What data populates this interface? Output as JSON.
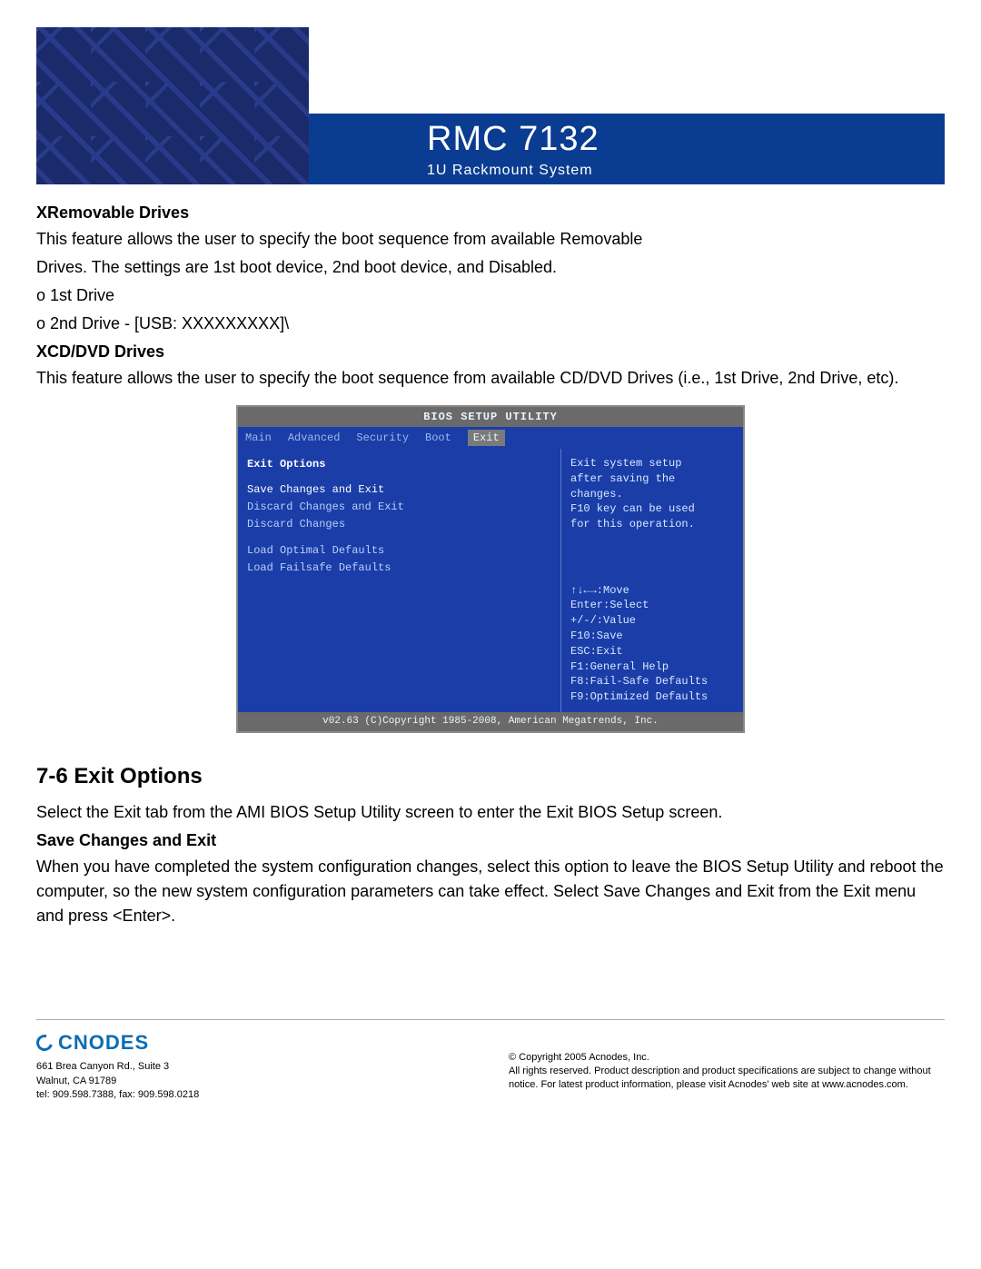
{
  "header": {
    "title": "RMC 7132",
    "subtitle": "1U Rackmount System",
    "banner_bg": "#0a3d91",
    "left_bg": "#1a2a6a"
  },
  "sections": {
    "removable": {
      "head": "XRemovable  Drives",
      "p1": "This feature allows the user to specify the boot sequence from available Removable",
      "p2": "Drives. The settings are 1st boot device, 2nd boot device, and Disabled.",
      "p3": "o 1st Drive",
      "p4": "o 2nd Drive - [USB: XXXXXXXXX]\\"
    },
    "cddvd": {
      "head": "XCD/DVD  Drives",
      "p1": "This feature allows the user to specify the boot sequence from available CD/DVD Drives (i.e., 1st Drive, 2nd Drive, etc)."
    },
    "exit": {
      "head": "7-6   Exit Options",
      "p1": "Select the Exit tab from the AMI BIOS Setup Utility screen to enter the Exit BIOS Setup screen."
    },
    "save": {
      "head": "Save Changes and Exit",
      "p1": "When you have completed the system configuration changes, select this option to leave the BIOS Setup Utility and reboot the computer, so the new system configuration parameters can take effect. Select Save Changes and Exit from the Exit menu and press <Enter>."
    }
  },
  "bios": {
    "title": "BIOS SETUP UTILITY",
    "menu": [
      "Main",
      "Advanced",
      "Security",
      "Boot",
      "Exit"
    ],
    "active_menu": 4,
    "panel_title": "Exit Options",
    "options": [
      "Save Changes and Exit",
      "Discard Changes and Exit",
      "Discard Changes",
      "",
      "Load Optimal Defaults",
      "Load Failsafe Defaults"
    ],
    "selected_option": 0,
    "help_top": [
      "Exit system setup",
      "after saving the",
      "changes.",
      "",
      "F10 key can be used",
      "for this operation."
    ],
    "help_bottom": [
      "↑↓←→:Move",
      "Enter:Select",
      "+/-/:Value",
      "F10:Save",
      "ESC:Exit",
      "F1:General Help",
      "F8:Fail-Safe Defaults",
      "F9:Optimized Defaults"
    ],
    "footer": "v02.63 (C)Copyright 1985-2008, American Megatrends, Inc.",
    "colors": {
      "bg": "#1a3da8",
      "text": "#cfe3ff",
      "titlebar_bg": "#6a6a6a",
      "menu_active_bg": "#7a7a7a"
    }
  },
  "footer": {
    "logo": "CNODES",
    "addr1": "661 Brea Canyon Rd., Suite 3",
    "addr2": "Walnut, CA 91789",
    "tel": "tel: 909.598.7388, fax: 909.598.0218",
    "copy": "© Copyright 2005 Acnodes, Inc.",
    "rights": "All rights reserved. Product description and product specifications are subject to change without notice. For latest product information, please visit Acnodes' web site at www.acnodes.com."
  }
}
